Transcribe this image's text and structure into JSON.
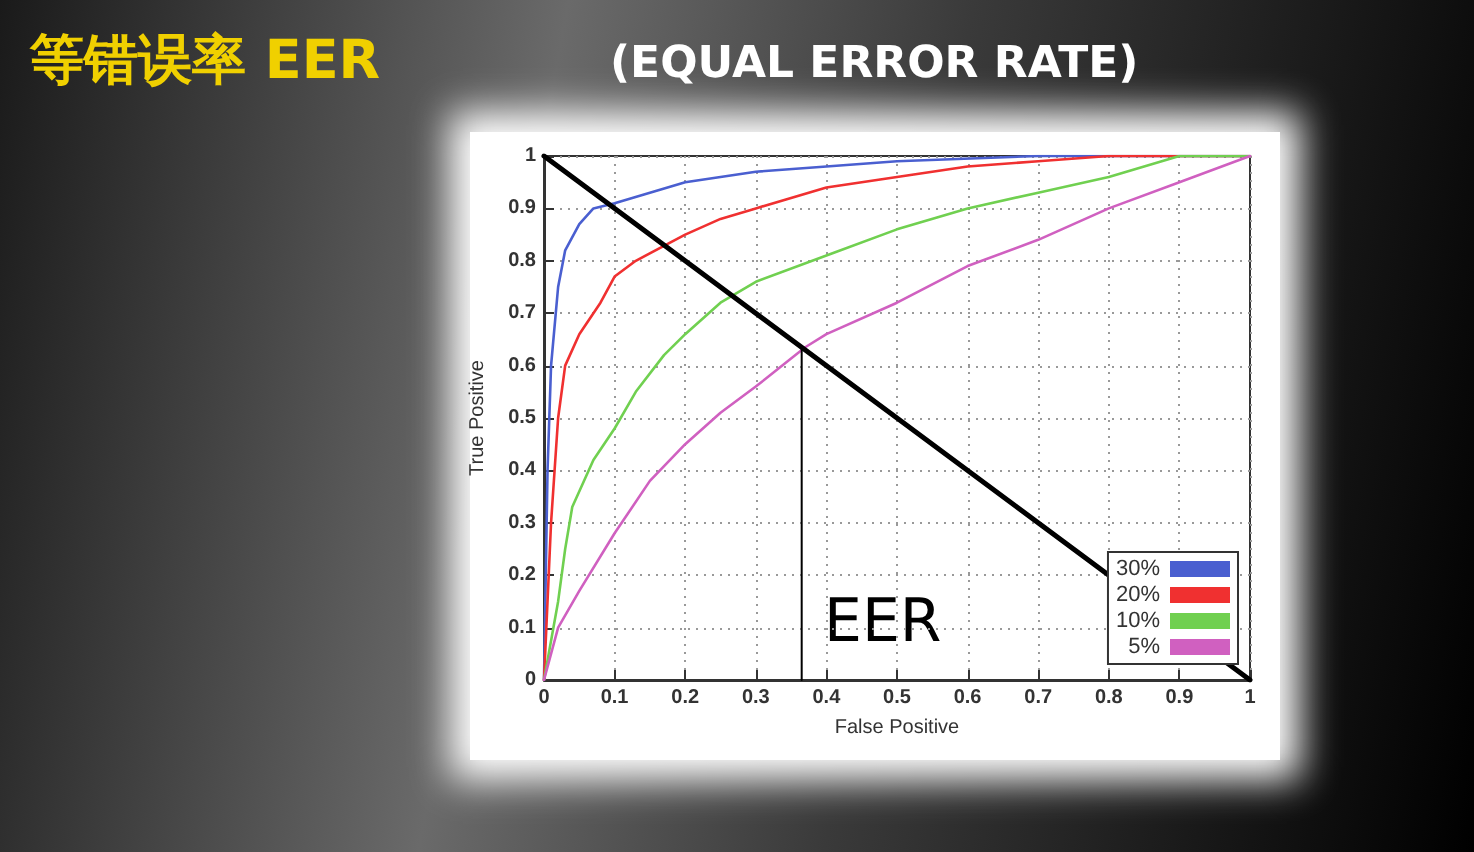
{
  "chart_data": {
    "type": "line",
    "title": "等错误率 EER",
    "subtitle": "(EQUAL ERROR RATE)",
    "xlabel": "False Positive",
    "ylabel": "True Positive",
    "series": [
      {
        "name": "30%",
        "color": "#4a5fd0",
        "x": [
          0,
          0.005,
          0.01,
          0.02,
          0.03,
          0.05,
          0.07,
          0.1,
          0.15,
          0.2,
          0.3,
          0.4,
          0.5,
          0.7,
          1
        ],
        "values": [
          0,
          0.4,
          0.6,
          0.75,
          0.82,
          0.87,
          0.9,
          0.91,
          0.93,
          0.95,
          0.97,
          0.98,
          0.99,
          1,
          1
        ]
      },
      {
        "name": "20%",
        "color": "#f03030",
        "x": [
          0,
          0.01,
          0.02,
          0.03,
          0.05,
          0.08,
          0.1,
          0.13,
          0.2,
          0.25,
          0.3,
          0.4,
          0.5,
          0.6,
          0.7,
          0.8,
          1
        ],
        "values": [
          0,
          0.3,
          0.5,
          0.6,
          0.66,
          0.72,
          0.77,
          0.8,
          0.85,
          0.88,
          0.9,
          0.94,
          0.96,
          0.98,
          0.99,
          1,
          1
        ]
      },
      {
        "name": "10%",
        "color": "#70d050",
        "x": [
          0,
          0.02,
          0.03,
          0.04,
          0.07,
          0.1,
          0.13,
          0.17,
          0.2,
          0.25,
          0.3,
          0.4,
          0.5,
          0.6,
          0.7,
          0.8,
          0.9,
          1
        ],
        "values": [
          0,
          0.15,
          0.25,
          0.33,
          0.42,
          0.48,
          0.55,
          0.62,
          0.66,
          0.72,
          0.76,
          0.81,
          0.86,
          0.9,
          0.93,
          0.96,
          1,
          1
        ]
      },
      {
        "name": "5%",
        "color": "#d060c0",
        "x": [
          0,
          0.02,
          0.05,
          0.1,
          0.15,
          0.2,
          0.25,
          0.3,
          0.37,
          0.4,
          0.5,
          0.6,
          0.7,
          0.8,
          0.9,
          1
        ],
        "values": [
          0,
          0.1,
          0.17,
          0.28,
          0.38,
          0.45,
          0.51,
          0.56,
          0.635,
          0.66,
          0.72,
          0.79,
          0.84,
          0.9,
          0.95,
          1
        ]
      },
      {
        "color": "#000000",
        "x": [
          0,
          1
        ],
        "values": [
          1,
          0
        ]
      },
      {
        "color": "#000000",
        "x": [
          0.365,
          0.365
        ],
        "values": [
          0,
          0.635
        ]
      }
    ],
    "annotations": [
      "EER"
    ],
    "xlim": [
      0,
      1
    ],
    "ylim": [
      0,
      1
    ],
    "xticks": [
      0,
      0.1,
      0.2,
      0.3,
      0.4,
      0.5,
      0.6,
      0.7,
      0.8,
      0.9,
      1
    ],
    "yticks": [
      0,
      0.1,
      0.2,
      0.3,
      0.4,
      0.5,
      0.6,
      0.7,
      0.8,
      0.9,
      1
    ],
    "grid": true,
    "legend": "bottom right"
  }
}
